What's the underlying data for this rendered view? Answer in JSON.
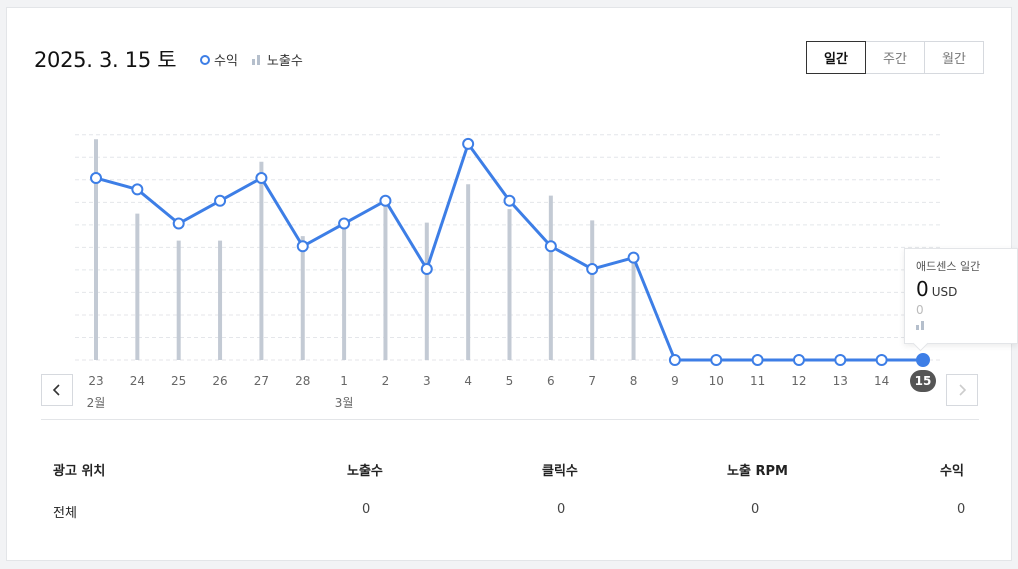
{
  "header": {
    "date": "2025. 3. 15 토",
    "legend": {
      "revenue": "수익",
      "impressions": "노출수"
    },
    "tabs": [
      {
        "label": "일간",
        "active": true
      },
      {
        "label": "주간",
        "active": false
      },
      {
        "label": "월간",
        "active": false
      }
    ]
  },
  "colors": {
    "line": "#3d7ee6",
    "bar": "#c3cad4",
    "selected_label_bg": "#555555"
  },
  "chart_data": {
    "type": "line",
    "categories": [
      "23",
      "24",
      "25",
      "26",
      "27",
      "28",
      "1",
      "2",
      "3",
      "4",
      "5",
      "6",
      "7",
      "8",
      "9",
      "10",
      "11",
      "12",
      "13",
      "14",
      "15"
    ],
    "month_labels": [
      {
        "index": 0,
        "label": "2월"
      },
      {
        "index": 6,
        "label": "3월"
      }
    ],
    "series": [
      {
        "name": "수익",
        "kind": "line",
        "values": [
          8.0,
          7.5,
          6.0,
          7.0,
          8.0,
          5.0,
          6.0,
          7.0,
          4.0,
          9.5,
          7.0,
          5.0,
          4.0,
          4.5,
          0,
          0,
          0,
          0,
          0,
          0,
          0
        ]
      },
      {
        "name": "노출수",
        "kind": "bar",
        "values": [
          9.8,
          6.5,
          5.3,
          5.3,
          8.8,
          5.5,
          6.1,
          7.1,
          6.1,
          7.8,
          6.7,
          7.3,
          6.2,
          4.6,
          0,
          0,
          0,
          0,
          0,
          0,
          0
        ]
      }
    ],
    "selected_index": 20,
    "grid": true
  },
  "tooltip": {
    "title": "애드센스 일간",
    "value": "0",
    "unit": "USD",
    "sub_value": "0"
  },
  "table": {
    "headers": [
      "광고 위치",
      "노출수",
      "클릭수",
      "노출 RPM",
      "수익"
    ],
    "rows": [
      [
        "전체",
        "0",
        "0",
        "0",
        "0"
      ]
    ]
  }
}
